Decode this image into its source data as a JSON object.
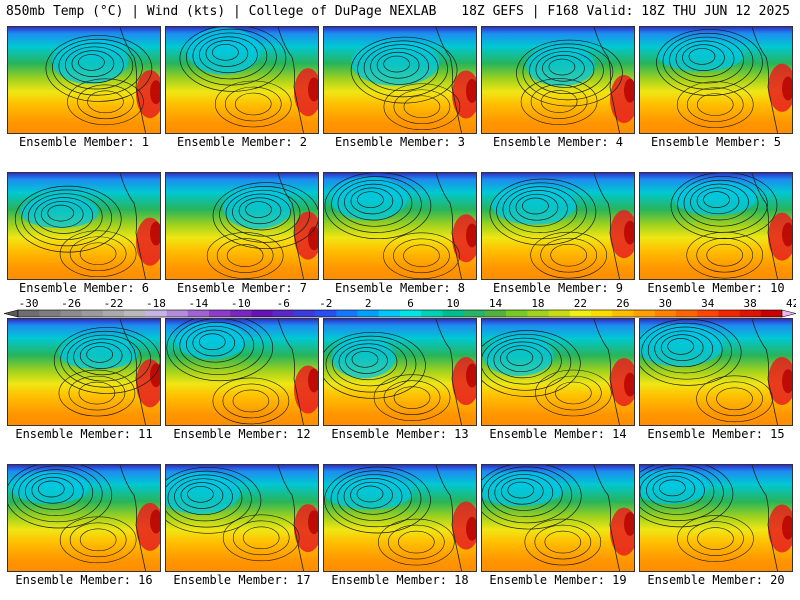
{
  "header": {
    "left": "850mb Temp (°C) | Wind (kts) | College of DuPage NEXLAB",
    "right": "18Z GEFS | F168 Valid: 18Z THU JUN 12 2025"
  },
  "caption_prefix": "Ensemble Member: ",
  "members": [
    {
      "label": "Ensemble Member: 1",
      "number": 1
    },
    {
      "label": "Ensemble Member: 2",
      "number": 2
    },
    {
      "label": "Ensemble Member: 3",
      "number": 3
    },
    {
      "label": "Ensemble Member: 4",
      "number": 4
    },
    {
      "label": "Ensemble Member: 5",
      "number": 5
    },
    {
      "label": "Ensemble Member: 6",
      "number": 6
    },
    {
      "label": "Ensemble Member: 7",
      "number": 7
    },
    {
      "label": "Ensemble Member: 8",
      "number": 8
    },
    {
      "label": "Ensemble Member: 9",
      "number": 9
    },
    {
      "label": "Ensemble Member: 10",
      "number": 10
    },
    {
      "label": "Ensemble Member: 11",
      "number": 11
    },
    {
      "label": "Ensemble Member: 12",
      "number": 12
    },
    {
      "label": "Ensemble Member: 13",
      "number": 13
    },
    {
      "label": "Ensemble Member: 14",
      "number": 14
    },
    {
      "label": "Ensemble Member: 15",
      "number": 15
    },
    {
      "label": "Ensemble Member: 16",
      "number": 16
    },
    {
      "label": "Ensemble Member: 17",
      "number": 17
    },
    {
      "label": "Ensemble Member: 18",
      "number": 18
    },
    {
      "label": "Ensemble Member: 19",
      "number": 19
    },
    {
      "label": "Ensemble Member: 20",
      "number": 20
    }
  ],
  "colorbar": {
    "tick_labels": [
      "-30",
      "-26",
      "-22",
      "-18",
      "-14",
      "-10",
      "-6",
      "-2",
      "2",
      "6",
      "10",
      "14",
      "18",
      "22",
      "26",
      "30",
      "34",
      "38",
      "42"
    ],
    "min": -30,
    "max": 42,
    "step": 2,
    "colors": [
      "#6e6e6e",
      "#7d7d7d",
      "#8c8c8c",
      "#9b9b9b",
      "#aaaaaa",
      "#b9b9b9",
      "#c6b4e6",
      "#b48cdc",
      "#a064d2",
      "#8c3cc8",
      "#7828be",
      "#6414b4",
      "#5a28c8",
      "#3c3cdc",
      "#2850f0",
      "#1478ff",
      "#00a0ff",
      "#00c8ff",
      "#00e6e6",
      "#00d2b4",
      "#00be8c",
      "#28b464",
      "#50b43c",
      "#78c828",
      "#a0d21e",
      "#c8dc14",
      "#f0f014",
      "#ffdc00",
      "#ffbe00",
      "#ffa000",
      "#ff8200",
      "#ff6400",
      "#ff4600",
      "#f02800",
      "#dc1400",
      "#c80000"
    ]
  }
}
